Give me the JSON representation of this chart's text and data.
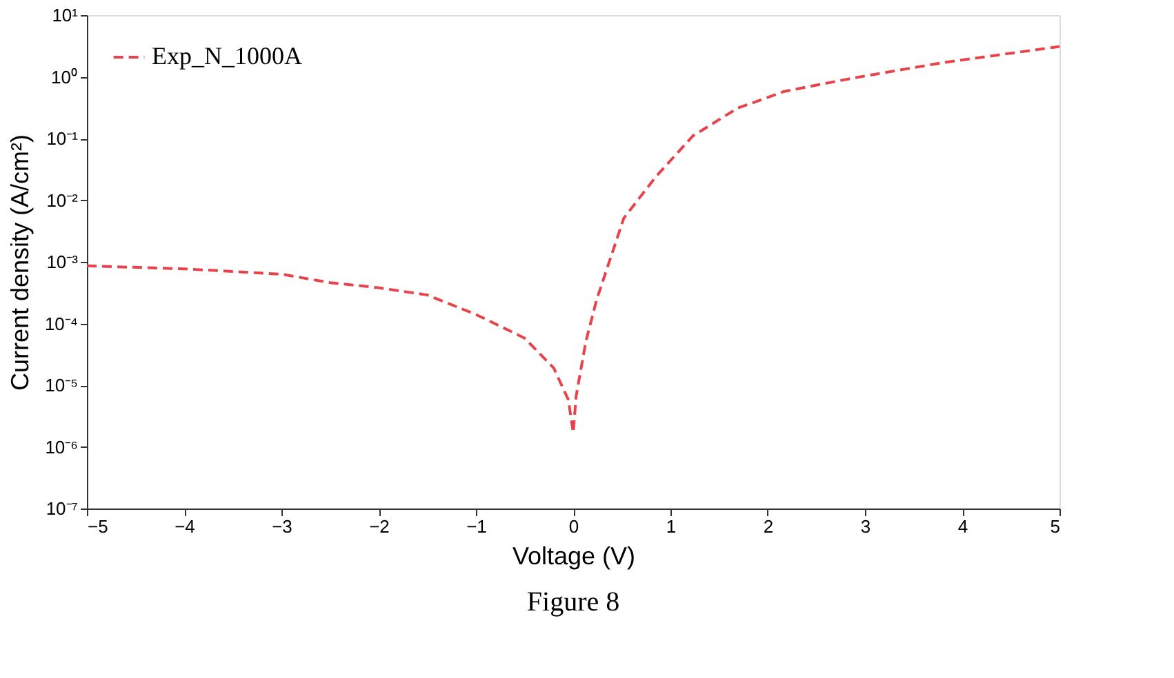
{
  "chart_data": {
    "type": "line",
    "xlabel": "Voltage (V)",
    "ylabel": "Current density (A/cm²)",
    "annotations": [
      "Figure 8"
    ],
    "x": [
      -5,
      -4,
      -3,
      -2.5,
      -2,
      -1.5,
      -1,
      -0.5,
      -0.2,
      -0.05,
      0,
      0.03,
      0.13,
      0.24,
      0.52,
      0.85,
      1.23,
      1.69,
      2.17,
      2.87,
      3.8,
      5
    ],
    "series": [
      {
        "name": "Exp_N_1000A",
        "color": "#e8434a",
        "line_style": "dashed",
        "values": [
          0.00086,
          0.00077,
          0.00063,
          0.00046,
          0.00038,
          0.00029,
          0.00014,
          5.8e-05,
          1.9e-05,
          5.8e-06,
          1.7e-06,
          6.6e-06,
          5.1e-05,
          0.00024,
          0.0051,
          0.024,
          0.11,
          0.31,
          0.58,
          0.95,
          1.7,
          3.1
        ]
      }
    ],
    "xlim": [
      -5,
      5
    ],
    "xticks": [
      -5,
      -4,
      -3,
      -2,
      -1,
      0,
      1,
      2,
      3,
      4,
      5
    ],
    "ylim": [
      1e-07,
      10
    ],
    "log": true,
    "yticks": [
      {
        "value": 1e-07,
        "label": "10⁻⁷"
      },
      {
        "value": 1e-06,
        "label": "10⁻⁶"
      },
      {
        "value": 1e-05,
        "label": "10⁻⁵"
      },
      {
        "value": 0.0001,
        "label": "10⁻⁴"
      },
      {
        "value": 0.001,
        "label": "10⁻³"
      },
      {
        "value": 0.01,
        "label": "10⁻²"
      },
      {
        "value": 0.1,
        "label": "10⁻¹"
      },
      {
        "value": 1,
        "label": "10⁰"
      },
      {
        "value": 10,
        "label": "10¹"
      }
    ],
    "grid": false,
    "legend": "top left",
    "marker": "none"
  }
}
